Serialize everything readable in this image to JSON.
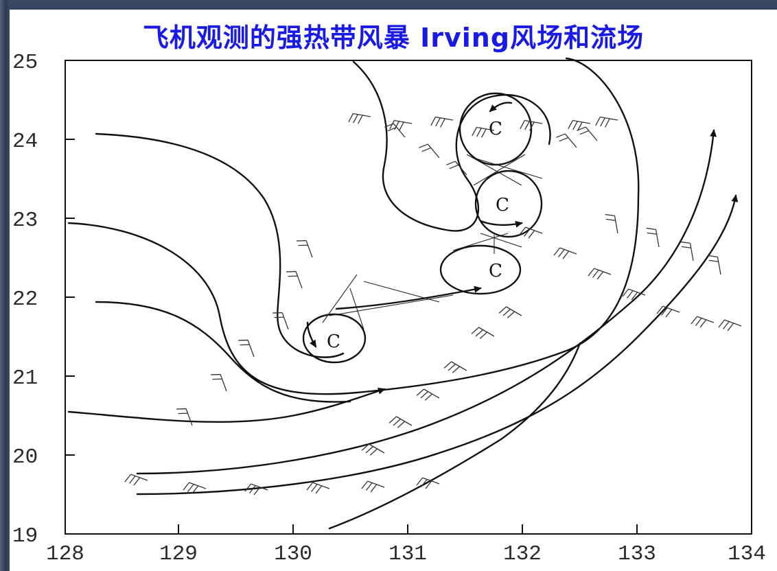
{
  "slide": {
    "title": "飞机观测的强热带风暴 Irving风场和流场"
  },
  "diagram": {
    "x_ticks": [
      "128",
      "129",
      "130",
      "131",
      "132",
      "133",
      "134"
    ],
    "y_ticks": [
      "25",
      "24",
      "23",
      "22",
      "21",
      "20",
      "19"
    ],
    "circulation_centers": [
      {
        "label": "C",
        "lon": 131.9,
        "lat": 24.1
      },
      {
        "label": "C",
        "lon": 132.0,
        "lat": 23.1
      },
      {
        "label": "C",
        "lon": 131.3,
        "lat": 22.3
      },
      {
        "label": "C",
        "lon": 130.4,
        "lat": 21.4
      }
    ]
  },
  "colors": {
    "title": "#1a1ae6",
    "background": "#233247",
    "panel": "#ffffff"
  }
}
